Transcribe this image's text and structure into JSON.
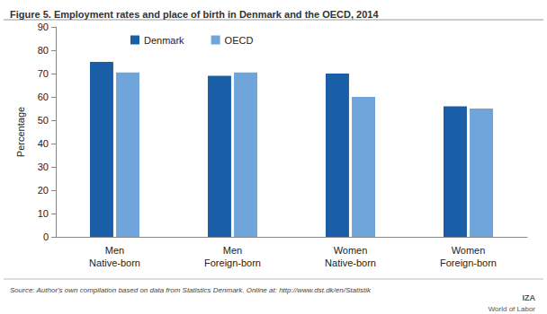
{
  "chart_data": {
    "type": "bar",
    "title": "Figure 5. Employment rates and place of birth in Denmark and the OECD, 2014",
    "y_label": "Percentage",
    "categories": [
      "Men\nNative-born",
      "Men\nForeign-born",
      "Women\nNative-born",
      "Women\nForeign-born"
    ],
    "series": [
      {
        "name": "Denmark",
        "color": "#1b5ea8",
        "values": [
          75,
          69,
          70,
          56
        ]
      },
      {
        "name": "OECD",
        "color": "#6fa5da",
        "values": [
          70.5,
          70.5,
          60,
          55
        ]
      }
    ],
    "ylim": [
      0,
      90
    ],
    "yticks": [
      0,
      10,
      20,
      30,
      40,
      50,
      60,
      70,
      80,
      90
    ],
    "grid": false,
    "legend": "top-left",
    "source": "Source: Author's own compilation based on data from Statistics Denmark. Online at: http://www.dst.dk/en/Statistik",
    "logo": [
      "IZA",
      "World of Labor"
    ]
  }
}
